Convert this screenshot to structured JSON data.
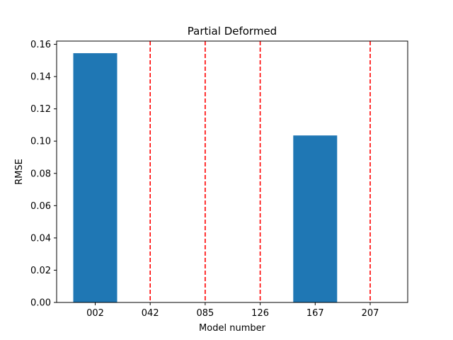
{
  "chart_data": {
    "type": "bar",
    "title": "Partial Deformed",
    "xlabel": "Model number",
    "ylabel": "RMSE",
    "categories": [
      "002",
      "042",
      "085",
      "126",
      "167",
      "207"
    ],
    "values": [
      0.1545,
      0.0,
      0.0,
      0.0,
      0.1035,
      0.0
    ],
    "ylim": [
      0,
      0.162
    ],
    "yticks": [
      0.0,
      0.02,
      0.04,
      0.06,
      0.08,
      0.1,
      0.12,
      0.14,
      0.16
    ],
    "ytick_labels": [
      "0.00",
      "0.02",
      "0.04",
      "0.06",
      "0.08",
      "0.10",
      "0.12",
      "0.14",
      "0.16"
    ],
    "bar_color": "#1f77b4",
    "vlines": {
      "at_categories": [
        "042",
        "085",
        "126",
        "207"
      ],
      "color": "#ff0000",
      "style": "dashed"
    },
    "grid": false,
    "legend": "none"
  }
}
